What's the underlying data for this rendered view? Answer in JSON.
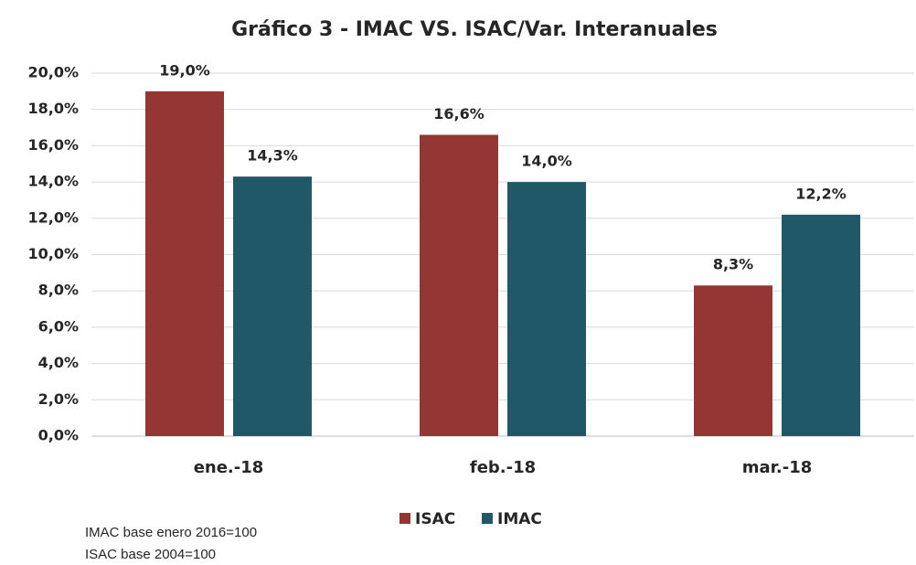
{
  "chart_data": {
    "type": "bar",
    "title": "Gráfico 3 - IMAC VS. ISAC/Var. Interanuales",
    "categories": [
      "ene.-18",
      "feb.-18",
      "mar.-18"
    ],
    "series": [
      {
        "name": "ISAC",
        "color": "#943634",
        "values": [
          19.0,
          16.6,
          8.3
        ],
        "value_labels": [
          "19,0%",
          "16,6%",
          "8,3%"
        ]
      },
      {
        "name": "IMAC",
        "color": "#215867",
        "values": [
          14.3,
          14.0,
          12.2
        ],
        "value_labels": [
          "14,3%",
          "14,0%",
          "12,2%"
        ]
      }
    ],
    "ylim": [
      0,
      20
    ],
    "yticks": [
      {
        "value": 0,
        "label": "0,0%"
      },
      {
        "value": 2,
        "label": "2,0%"
      },
      {
        "value": 4,
        "label": "4,0%"
      },
      {
        "value": 6,
        "label": "6,0%"
      },
      {
        "value": 8,
        "label": "8,0%"
      },
      {
        "value": 10,
        "label": "10,0%"
      },
      {
        "value": 12,
        "label": "12,0%"
      },
      {
        "value": 14,
        "label": "14,0%"
      },
      {
        "value": 16,
        "label": "16,0%"
      },
      {
        "value": 18,
        "label": "18,0%"
      },
      {
        "value": 20,
        "label": "20,0%"
      }
    ],
    "grid": true,
    "legend": "bottom",
    "notes": [
      "IMAC base enero 2016=100",
      "ISAC base 2004=100"
    ]
  }
}
